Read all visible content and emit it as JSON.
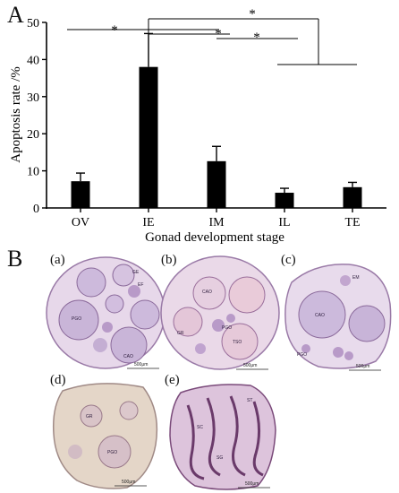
{
  "panels": {
    "a_label": "A",
    "b_label": "B"
  },
  "chart_data": {
    "type": "bar",
    "title": "",
    "xlabel": "Gonad development stage",
    "ylabel": "Apoptosis rate /%",
    "ylim": [
      0,
      50
    ],
    "yticks": [
      "0",
      "10",
      "20",
      "30",
      "40",
      "50"
    ],
    "categories": [
      "OV",
      "IE",
      "IM",
      "IL",
      "TE"
    ],
    "values": [
      7.2,
      38.0,
      12.6,
      4.1,
      5.6
    ],
    "errors": [
      2.2,
      9.0,
      4.0,
      1.2,
      1.3
    ],
    "bar_color": "#000000",
    "grid": false,
    "significance": [
      {
        "label": "*",
        "from": "OV",
        "to": "IM"
      },
      {
        "label": "*",
        "from": "IE",
        "to": "IM"
      },
      {
        "label": "*",
        "from": "IE",
        "to": "IL/TE group"
      },
      {
        "label": "*",
        "from": "IM",
        "to": "IL"
      }
    ]
  },
  "micrographs": [
    {
      "label": "(a)",
      "cells": [
        "PGO",
        "CAO",
        "GE",
        "EF"
      ],
      "scale": "500μm"
    },
    {
      "label": "(b)",
      "cells": [
        "CAO",
        "PGO",
        "TSO",
        "GR"
      ],
      "scale": "500μm"
    },
    {
      "label": "(c)",
      "cells": [
        "CAO",
        "PGO",
        "EM"
      ],
      "scale": "500μm"
    },
    {
      "label": "(d)",
      "cells": [
        "GR",
        "PGO"
      ],
      "scale": "500μm"
    },
    {
      "label": "(e)",
      "cells": [
        "ST",
        "SC",
        "SG"
      ],
      "scale": "500μm"
    }
  ]
}
